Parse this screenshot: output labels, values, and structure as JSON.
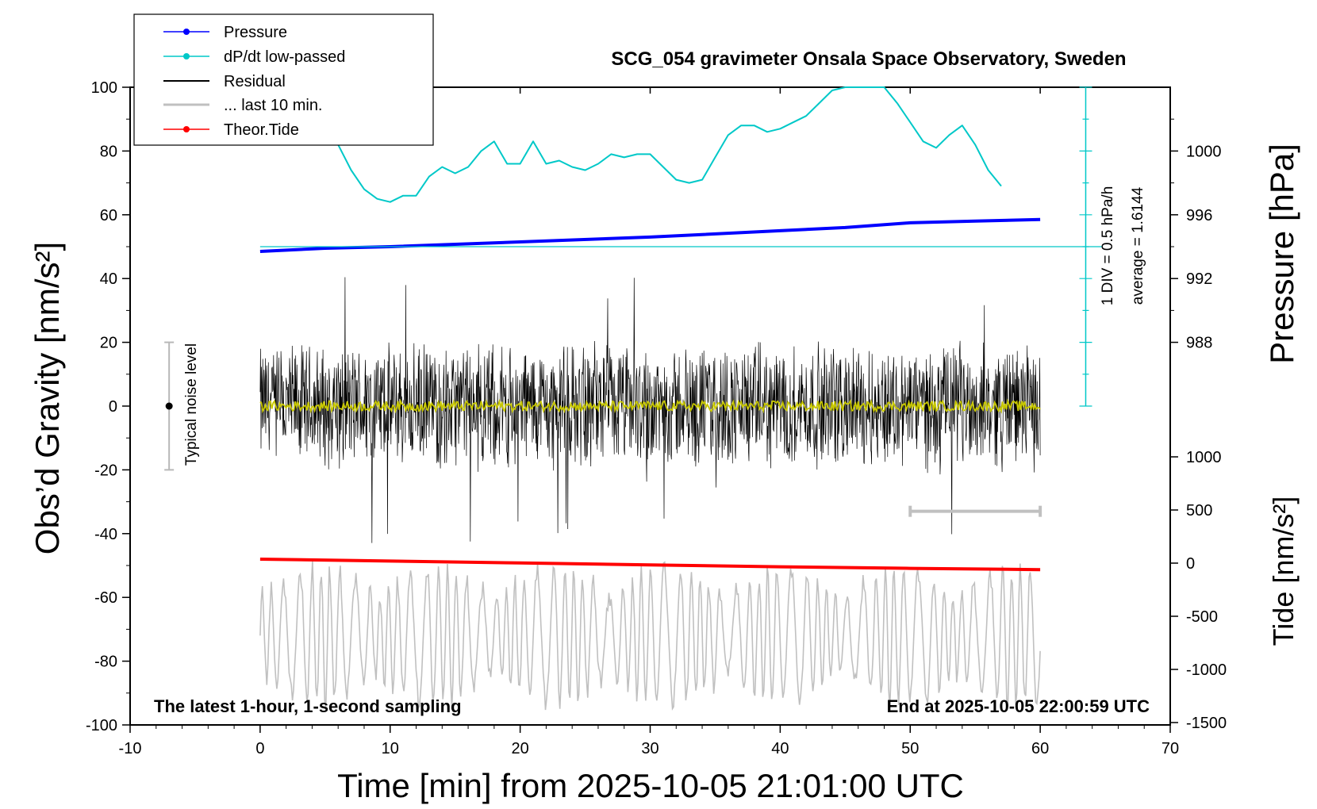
{
  "chart_data": {
    "type": "line",
    "title": "SCG_054 gravimeter Onsala Space Observatory, Sweden",
    "xlabel": "Time [min] from 2025-10-05 21:01:00 UTC",
    "ylabel_left": "Obs’d Gravity [nm/s²]",
    "ylabel_right_top": "Pressure [hPa]",
    "ylabel_right_bottom": "Tide [nm/s²]",
    "xlim": [
      -10,
      70
    ],
    "ylim_left": [
      -100,
      100
    ],
    "xticks": [
      "-10",
      "0",
      "10",
      "20",
      "30",
      "40",
      "50",
      "60",
      "70"
    ],
    "yticks_left": [
      "100",
      "80",
      "60",
      "40",
      "20",
      "0",
      "-20",
      "-40",
      "-60",
      "-80",
      "-100"
    ],
    "pressure_ticks": [
      "1000",
      "996",
      "992",
      "988"
    ],
    "tide_ticks": [
      "1000",
      "500",
      "0",
      "-500",
      "-1000",
      "-1500"
    ],
    "legend": {
      "placement": "top-left",
      "entries": [
        {
          "label": "Pressure",
          "color": "#0000ff",
          "marker": "dot"
        },
        {
          "label": "dP/dt low-passed",
          "color": "#00c8c8",
          "marker": "dot"
        },
        {
          "label": "Residual",
          "color": "#000000",
          "marker": "none"
        },
        {
          "label": "... last 10 min.",
          "color": "#c0c0c0",
          "marker": "none"
        },
        {
          "label": "Theor.Tide",
          "color": "#ff0000",
          "marker": "dot"
        }
      ]
    },
    "annotations": {
      "bottom_left": "The latest 1-hour, 1-second sampling",
      "bottom_right": "End at 2025-10-05 22:00:59 UTC",
      "noise_label": "Typical noise level",
      "div_label": "1 DIV = 0.5 hPa/h",
      "average_label": "average = 1.6144"
    },
    "series": [
      {
        "name": "Pressure",
        "color": "#0000ff",
        "x": [
          0,
          5,
          10,
          20,
          30,
          40,
          45,
          50,
          55,
          60
        ],
        "y_hpa": [
          993.7,
          993.9,
          994.0,
          994.3,
          994.6,
          995.0,
          995.2,
          995.5,
          995.6,
          995.7
        ]
      },
      {
        "name": "dP/dt low-passed",
        "color": "#00c8c8",
        "x": [
          6,
          7,
          8,
          9,
          10,
          11,
          12,
          13,
          14,
          15,
          16,
          17,
          18,
          19,
          20,
          21,
          22,
          23,
          24,
          25,
          26,
          27,
          28,
          29,
          30,
          31,
          32,
          33,
          34,
          35,
          36,
          37,
          38,
          39,
          40,
          41,
          42,
          43,
          44,
          45,
          48,
          49,
          50,
          51,
          52,
          53,
          54,
          55,
          56,
          57
        ],
        "y": [
          82,
          74,
          68,
          65,
          64,
          66,
          66,
          72,
          75,
          73,
          75,
          80,
          83,
          76,
          76,
          83,
          76,
          77,
          75,
          74,
          76,
          79,
          78,
          79,
          79,
          75,
          71,
          70,
          71,
          78,
          85,
          88,
          88,
          86,
          87,
          89,
          91,
          95,
          99,
          100,
          100,
          95,
          89,
          83,
          81,
          85,
          88,
          82,
          74,
          69
        ]
      },
      {
        "name": "Theor.Tide",
        "color": "#ff0000",
        "x": [
          0,
          10,
          20,
          30,
          40,
          50,
          60
        ],
        "y": [
          -48,
          -48.6,
          -49.2,
          -49.8,
          -50.4,
          -50.9,
          -51.3
        ]
      }
    ],
    "residual": {
      "x_range": [
        0,
        60
      ],
      "amplitude_typical": 18,
      "amplitude_peak": 44
    },
    "residual_smoothed": {
      "color": "#c8c800",
      "x_range": [
        0,
        60
      ],
      "value": 0
    },
    "last10": {
      "x_range": [
        0,
        60
      ],
      "center": -72,
      "amplitude": 18
    },
    "noise_bar": {
      "x": -7,
      "center": 0,
      "half": 20
    },
    "last10_bar": {
      "x_range": [
        50,
        60
      ],
      "y": -33
    },
    "pressure_ref_line": {
      "y": 50,
      "x_range": [
        0,
        63.5
      ]
    }
  }
}
